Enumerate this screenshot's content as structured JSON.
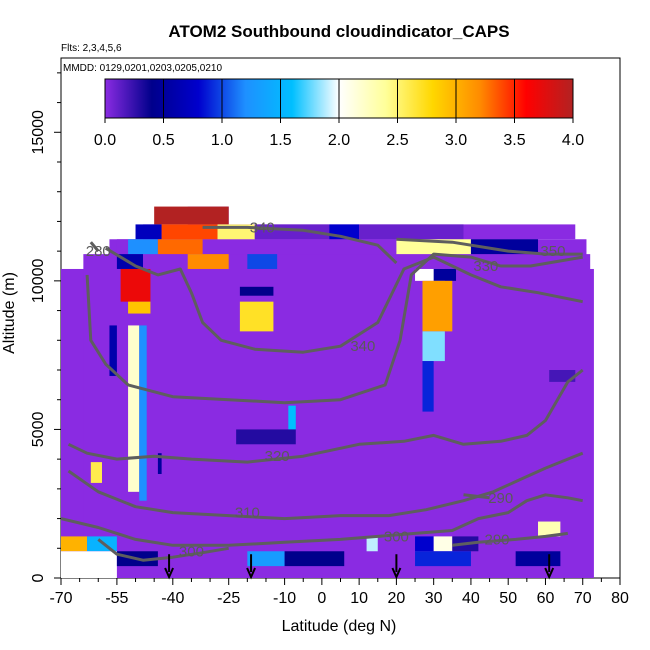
{
  "chart_data": {
    "type": "heatmap",
    "title": "ATOM2 Southbound cloudindicator_CAPS",
    "subtitle_flights": "Flts: 2,3,4,5,6",
    "subtitle_dates": "MMDD: 0129,0201,0203,0205,0210",
    "xlabel": "Latitude (deg N)",
    "ylabel": "Altitude (m)",
    "xlim": [
      -70,
      80
    ],
    "ylim": [
      0,
      17500
    ],
    "x_tick_labels": [
      "-70",
      "-55",
      "-40",
      "-25",
      "-10",
      "0",
      "10",
      "20",
      "30",
      "40",
      "50",
      "60",
      "70",
      "80"
    ],
    "x_ticks": [
      -70,
      -55,
      -40,
      -25,
      -10,
      0,
      10,
      20,
      30,
      40,
      50,
      60,
      70,
      80
    ],
    "y_ticks": [
      0,
      5000,
      10000,
      15000
    ],
    "y_tick_labels": [
      "0",
      "5000",
      "10000",
      "15000"
    ],
    "colorbar": {
      "range": [
        0,
        4
      ],
      "ticks": [
        0.0,
        0.5,
        1.0,
        1.5,
        2.0,
        2.5,
        3.0,
        3.5,
        4.0
      ],
      "tick_labels": [
        "0.0",
        "0.5",
        "1.0",
        "1.5",
        "2.0",
        "2.5",
        "3.0",
        "3.5",
        "4.0"
      ],
      "colors": [
        "#8a2be2",
        "#00008b",
        "#0000cd",
        "#1e90ff",
        "#00bfff",
        "#ffffff",
        "#ffff99",
        "#ffd700",
        "#ff8c00",
        "#ff0000",
        "#b22222"
      ]
    },
    "background_value": 0.0,
    "cells": [
      {
        "lat0": -45,
        "lat1": -25,
        "alt0": 11900,
        "alt1": 12500,
        "value": 4.0
      },
      {
        "lat0": -50,
        "lat1": -43,
        "alt0": 11400,
        "alt1": 11900,
        "value": 0.7
      },
      {
        "lat0": -43,
        "lat1": -28,
        "alt0": 11400,
        "alt1": 11900,
        "value": 3.4
      },
      {
        "lat0": -28,
        "lat1": -18,
        "alt0": 11400,
        "alt1": 11900,
        "value": 2.5
      },
      {
        "lat0": -18,
        "lat1": 2,
        "alt0": 11400,
        "alt1": 11900,
        "value": 0.1
      },
      {
        "lat0": 2,
        "lat1": 10,
        "alt0": 11400,
        "alt1": 11900,
        "value": 0.8
      },
      {
        "lat0": 10,
        "lat1": 38,
        "alt0": 11400,
        "alt1": 11900,
        "value": 0.1
      },
      {
        "lat0": -52,
        "lat1": -44,
        "alt0": 10900,
        "alt1": 11400,
        "value": 1.2
      },
      {
        "lat0": -44,
        "lat1": -32,
        "alt0": 10900,
        "alt1": 11400,
        "value": 3.3
      },
      {
        "lat0": 20,
        "lat1": 40,
        "alt0": 10900,
        "alt1": 11400,
        "value": 2.4
      },
      {
        "lat0": 40,
        "lat1": 58,
        "alt0": 10900,
        "alt1": 11400,
        "value": 0.5
      },
      {
        "lat0": -55,
        "lat1": -48,
        "alt0": 10400,
        "alt1": 10900,
        "value": 0.6
      },
      {
        "lat0": -36,
        "lat1": -25,
        "alt0": 10400,
        "alt1": 10900,
        "value": 3.2
      },
      {
        "lat0": -20,
        "lat1": -12,
        "alt0": 10400,
        "alt1": 10900,
        "value": 1.0
      },
      {
        "lat0": 25,
        "lat1": 33,
        "alt0": 10000,
        "alt1": 10400,
        "value": 2.0
      },
      {
        "lat0": 30,
        "lat1": 36,
        "alt0": 10000,
        "alt1": 10400,
        "value": 0.5
      },
      {
        "lat0": -54,
        "lat1": -46,
        "alt0": 9300,
        "alt1": 10400,
        "value": 3.7
      },
      {
        "lat0": -52,
        "lat1": -46,
        "alt0": 8900,
        "alt1": 9300,
        "value": 2.9
      },
      {
        "lat0": -22,
        "lat1": -13,
        "alt0": 9500,
        "alt1": 9800,
        "value": 0.4
      },
      {
        "lat0": -22,
        "lat1": -13,
        "alt0": 8300,
        "alt1": 9300,
        "value": 2.7
      },
      {
        "lat0": 27,
        "lat1": 35,
        "alt0": 8300,
        "alt1": 10000,
        "value": 3.1
      },
      {
        "lat0": 27,
        "lat1": 33,
        "alt0": 7300,
        "alt1": 8300,
        "value": 1.8
      },
      {
        "lat0": -57,
        "lat1": -55,
        "alt0": 6800,
        "alt1": 8500,
        "value": 0.6
      },
      {
        "lat0": -52,
        "lat1": -49,
        "alt0": 2900,
        "alt1": 8500,
        "value": 2.2
      },
      {
        "lat0": -49,
        "lat1": -47,
        "alt0": 2600,
        "alt1": 8500,
        "value": 1.2
      },
      {
        "lat0": 27,
        "lat1": 30,
        "alt0": 5600,
        "alt1": 7300,
        "value": 0.9
      },
      {
        "lat0": 61,
        "lat1": 68,
        "alt0": 6600,
        "alt1": 7000,
        "value": 0.2
      },
      {
        "lat0": -9,
        "lat1": -7,
        "alt0": 5000,
        "alt1": 5800,
        "value": 1.6
      },
      {
        "lat0": -23,
        "lat1": -7,
        "alt0": 4500,
        "alt1": 5000,
        "value": 0.3
      },
      {
        "lat0": -62,
        "lat1": -59,
        "alt0": 3200,
        "alt1": 3900,
        "value": 2.6
      },
      {
        "lat0": -44,
        "lat1": -43,
        "alt0": 3500,
        "alt1": 4200,
        "value": 0.5
      },
      {
        "lat0": -70,
        "lat1": -63,
        "alt0": 900,
        "alt1": 1400,
        "value": 3.0
      },
      {
        "lat0": -63,
        "lat1": -55,
        "alt0": 900,
        "alt1": 1400,
        "value": 1.5
      },
      {
        "lat0": -70,
        "lat1": -55,
        "alt0": 0,
        "alt1": 900,
        "value": 2.0
      },
      {
        "lat0": -55,
        "lat1": -44,
        "alt0": 400,
        "alt1": 900,
        "value": 0.4
      },
      {
        "lat0": -20,
        "lat1": -10,
        "alt0": 400,
        "alt1": 900,
        "value": 1.3
      },
      {
        "lat0": -10,
        "lat1": 6,
        "alt0": 400,
        "alt1": 900,
        "value": 0.4
      },
      {
        "lat0": 12,
        "lat1": 15,
        "alt0": 900,
        "alt1": 1400,
        "value": 1.9
      },
      {
        "lat0": 25,
        "lat1": 30,
        "alt0": 900,
        "alt1": 1400,
        "value": 0.8
      },
      {
        "lat0": 30,
        "lat1": 35,
        "alt0": 900,
        "alt1": 1400,
        "value": 2.1
      },
      {
        "lat0": 35,
        "lat1": 42,
        "alt0": 900,
        "alt1": 1400,
        "value": 0.3
      },
      {
        "lat0": 58,
        "lat1": 64,
        "alt0": 1400,
        "alt1": 1900,
        "value": 2.3
      },
      {
        "lat0": 25,
        "lat1": 40,
        "alt0": 400,
        "alt1": 900,
        "value": 0.9
      },
      {
        "lat0": 52,
        "lat1": 64,
        "alt0": 400,
        "alt1": 900,
        "value": 0.5
      }
    ],
    "contours": [
      {
        "label": "340",
        "label_at": [
          11,
          7800
        ],
        "points": [
          [
            -58,
            11100
          ],
          [
            -50,
            10500
          ],
          [
            -44,
            10200
          ],
          [
            -38,
            10400
          ],
          [
            -35,
            9600
          ],
          [
            -32,
            8600
          ],
          [
            -27,
            8000
          ],
          [
            -18,
            7700
          ],
          [
            -5,
            7600
          ],
          [
            5,
            7800
          ],
          [
            15,
            8600
          ],
          [
            22,
            10400
          ],
          [
            30,
            10800
          ],
          [
            40,
            10200
          ],
          [
            48,
            9800
          ],
          [
            58,
            9600
          ],
          [
            70,
            9300
          ]
        ]
      },
      {
        "label": "330",
        "label_at": [
          44,
          10500
        ],
        "points": [
          [
            -63,
            10200
          ],
          [
            -62,
            8000
          ],
          [
            -58,
            7200
          ],
          [
            -52,
            6500
          ],
          [
            -40,
            6100
          ],
          [
            -25,
            6000
          ],
          [
            -10,
            5900
          ],
          [
            5,
            6000
          ],
          [
            17,
            6500
          ],
          [
            21,
            8000
          ],
          [
            24,
            10200
          ],
          [
            30,
            10900
          ],
          [
            40,
            10800
          ],
          [
            48,
            10500
          ],
          [
            56,
            10500
          ],
          [
            70,
            10800
          ]
        ]
      },
      {
        "label": "350",
        "label_at": [
          62,
          11000
        ],
        "points": [
          [
            20,
            11400
          ],
          [
            35,
            11300
          ],
          [
            50,
            11000
          ],
          [
            60,
            10900
          ],
          [
            70,
            10900
          ]
        ]
      },
      {
        "label": "340",
        "label_at": [
          -16,
          11800
        ],
        "points": [
          [
            -32,
            11800
          ],
          [
            -20,
            11800
          ],
          [
            -5,
            11700
          ],
          [
            5,
            11500
          ],
          [
            15,
            11200
          ],
          [
            20,
            10600
          ]
        ]
      },
      {
        "label": "320",
        "label_at": [
          -12,
          4100
        ],
        "points": [
          [
            -68,
            4500
          ],
          [
            -63,
            4200
          ],
          [
            -55,
            4000
          ],
          [
            -45,
            4100
          ],
          [
            -35,
            4000
          ],
          [
            -20,
            3900
          ],
          [
            -5,
            4100
          ],
          [
            10,
            4500
          ],
          [
            22,
            4600
          ],
          [
            30,
            4800
          ],
          [
            38,
            4500
          ],
          [
            48,
            4600
          ],
          [
            55,
            4800
          ],
          [
            60,
            5300
          ],
          [
            66,
            6600
          ],
          [
            70,
            7000
          ]
        ]
      },
      {
        "label": "310",
        "label_at": [
          -20,
          2200
        ],
        "points": [
          [
            -68,
            3600
          ],
          [
            -60,
            2900
          ],
          [
            -50,
            2400
          ],
          [
            -40,
            2200
          ],
          [
            -25,
            2100
          ],
          [
            -10,
            2000
          ],
          [
            5,
            2100
          ],
          [
            18,
            2100
          ],
          [
            28,
            2300
          ],
          [
            38,
            2600
          ],
          [
            46,
            2900
          ],
          [
            53,
            3300
          ],
          [
            60,
            3700
          ],
          [
            66,
            4000
          ],
          [
            70,
            4200
          ]
        ]
      },
      {
        "label": "300",
        "label_at": [
          20,
          1400
        ],
        "points": [
          [
            -70,
            2000
          ],
          [
            -60,
            1700
          ],
          [
            -50,
            1300
          ],
          [
            -40,
            1100
          ],
          [
            -25,
            1100
          ],
          [
            -10,
            1200
          ],
          [
            5,
            1300
          ],
          [
            15,
            1400
          ],
          [
            25,
            1500
          ],
          [
            35,
            1600
          ],
          [
            42,
            2000
          ],
          [
            50,
            2200
          ],
          [
            55,
            2600
          ],
          [
            60,
            2800
          ],
          [
            66,
            2700
          ],
          [
            70,
            2600
          ]
        ]
      },
      {
        "label": "290",
        "label_at": [
          48,
          2700
        ],
        "points": [
          [
            38,
            2800
          ],
          [
            45,
            2700
          ]
        ]
      },
      {
        "label": "290",
        "label_at": [
          47,
          1300
        ],
        "points": [
          [
            35,
            1100
          ],
          [
            42,
            1200
          ],
          [
            52,
            1300
          ],
          [
            60,
            1400
          ],
          [
            66,
            1500
          ]
        ]
      },
      {
        "label": "300",
        "label_at": [
          -35,
          900
        ],
        "points": [
          [
            -60,
            1300
          ],
          [
            -55,
            800
          ],
          [
            -48,
            600
          ],
          [
            -40,
            700
          ],
          [
            -32,
            850
          ],
          [
            -25,
            1000
          ]
        ]
      },
      {
        "label": "280",
        "label_at": [
          -60,
          11000
        ],
        "points": [
          [
            -62,
            11300
          ],
          [
            -60,
            11000
          ]
        ]
      }
    ],
    "arrows_lat": [
      -41,
      -19,
      20,
      61
    ]
  }
}
